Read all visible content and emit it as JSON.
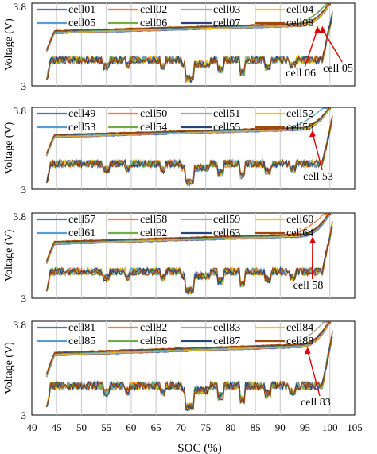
{
  "chart_data": {
    "type": "line",
    "xlabel": "SOC (%)",
    "xlim": [
      40,
      105
    ],
    "xticks": [
      "40",
      "45",
      "50",
      "55",
      "60",
      "65",
      "70",
      "75",
      "80",
      "85",
      "90",
      "95",
      "100",
      "105"
    ],
    "grid": "vertical",
    "legend": "top, 4 columns",
    "panels": [
      {
        "ylabel": "Voltage (V)",
        "ylim": [
          3,
          3.8
        ],
        "yticks": [
          "3.8",
          "3"
        ],
        "series": [
          {
            "name": "cell01",
            "color": "#4472C4"
          },
          {
            "name": "cell02",
            "color": "#ED7D31"
          },
          {
            "name": "cell03",
            "color": "#A5A5A5"
          },
          {
            "name": "cell04",
            "color": "#FFC000"
          },
          {
            "name": "cell05",
            "color": "#5B9BD5"
          },
          {
            "name": "cell06",
            "color": "#70AD47"
          },
          {
            "name": "cell07",
            "color": "#264478"
          },
          {
            "name": "cell08",
            "color": "#9E480E"
          }
        ],
        "annotations": [
          {
            "text": "cell 06",
            "target_soc": 97.5,
            "label_soc": 94
          },
          {
            "text": "cell 05",
            "target_soc": 98.5,
            "label_soc": 101.5
          }
        ]
      },
      {
        "ylabel": "Voltage (V)",
        "ylim": [
          3,
          3.8
        ],
        "yticks": [
          "3.8",
          "3"
        ],
        "series": [
          {
            "name": "cell49",
            "color": "#4472C4"
          },
          {
            "name": "cell50",
            "color": "#ED7D31"
          },
          {
            "name": "cell51",
            "color": "#A5A5A5"
          },
          {
            "name": "cell52",
            "color": "#FFC000"
          },
          {
            "name": "cell53",
            "color": "#5B9BD5"
          },
          {
            "name": "cell54",
            "color": "#70AD47"
          },
          {
            "name": "cell55",
            "color": "#264478"
          },
          {
            "name": "cell56",
            "color": "#9E480E"
          }
        ],
        "annotations": [
          {
            "text": "cell 53",
            "target_soc": 96.5,
            "label_soc": 97.5
          }
        ]
      },
      {
        "ylabel": "Voltage (V)",
        "ylim": [
          3,
          3.8
        ],
        "yticks": [
          "3.8",
          "3"
        ],
        "series": [
          {
            "name": "cell57",
            "color": "#4472C4"
          },
          {
            "name": "cell58",
            "color": "#ED7D31"
          },
          {
            "name": "cell59",
            "color": "#A5A5A5"
          },
          {
            "name": "cell60",
            "color": "#FFC000"
          },
          {
            "name": "cell61",
            "color": "#5B9BD5"
          },
          {
            "name": "cell62",
            "color": "#70AD47"
          },
          {
            "name": "cell63",
            "color": "#264478"
          },
          {
            "name": "cell64",
            "color": "#9E480E"
          }
        ],
        "annotations": [
          {
            "text": "cell 58",
            "target_soc": 96.5,
            "label_soc": 95.5
          }
        ]
      },
      {
        "ylabel": "Voltage (V)",
        "ylim": [
          3,
          3.8
        ],
        "yticks": [
          "3.8",
          "3"
        ],
        "series": [
          {
            "name": "cell81",
            "color": "#4472C4"
          },
          {
            "name": "cell82",
            "color": "#ED7D31"
          },
          {
            "name": "cell83",
            "color": "#A5A5A5"
          },
          {
            "name": "cell84",
            "color": "#FFC000"
          },
          {
            "name": "cell85",
            "color": "#5B9BD5"
          },
          {
            "name": "cell86",
            "color": "#70AD47"
          },
          {
            "name": "cell87",
            "color": "#264478"
          },
          {
            "name": "cell88",
            "color": "#9E480E"
          }
        ],
        "annotations": [
          {
            "text": "cell 83",
            "target_soc": 95.5,
            "label_soc": 97
          }
        ]
      }
    ]
  }
}
